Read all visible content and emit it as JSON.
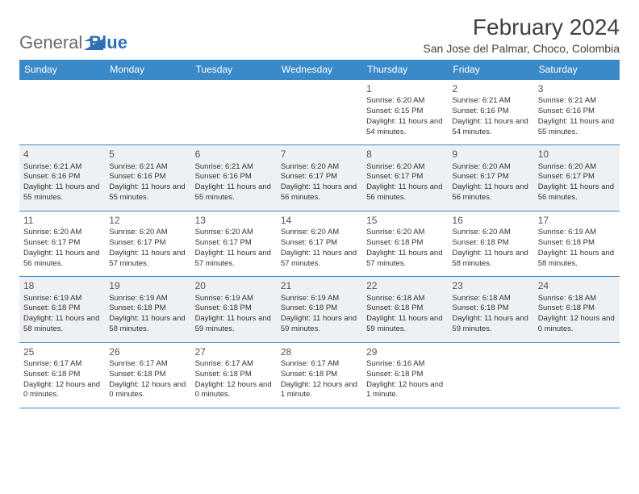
{
  "brand": {
    "word1": "General",
    "word2": "Blue"
  },
  "title": "February 2024",
  "subtitle": "San Jose del Palmar, Choco, Colombia",
  "colors": {
    "header_bg": "#3a8ac9",
    "header_text": "#ffffff",
    "rule": "#3a8ac9",
    "alt_row": "#eef1f3",
    "logo_grey": "#6a6a6a",
    "logo_blue": "#2f6fb3"
  },
  "day_headers": [
    "Sunday",
    "Monday",
    "Tuesday",
    "Wednesday",
    "Thursday",
    "Friday",
    "Saturday"
  ],
  "weeks": [
    [
      null,
      null,
      null,
      null,
      {
        "n": "1",
        "sr": "6:20 AM",
        "ss": "6:15 PM",
        "dl": "11 hours and 54 minutes."
      },
      {
        "n": "2",
        "sr": "6:21 AM",
        "ss": "6:16 PM",
        "dl": "11 hours and 54 minutes."
      },
      {
        "n": "3",
        "sr": "6:21 AM",
        "ss": "6:16 PM",
        "dl": "11 hours and 55 minutes."
      }
    ],
    [
      {
        "n": "4",
        "sr": "6:21 AM",
        "ss": "6:16 PM",
        "dl": "11 hours and 55 minutes."
      },
      {
        "n": "5",
        "sr": "6:21 AM",
        "ss": "6:16 PM",
        "dl": "11 hours and 55 minutes."
      },
      {
        "n": "6",
        "sr": "6:21 AM",
        "ss": "6:16 PM",
        "dl": "11 hours and 55 minutes."
      },
      {
        "n": "7",
        "sr": "6:20 AM",
        "ss": "6:17 PM",
        "dl": "11 hours and 56 minutes."
      },
      {
        "n": "8",
        "sr": "6:20 AM",
        "ss": "6:17 PM",
        "dl": "11 hours and 56 minutes."
      },
      {
        "n": "9",
        "sr": "6:20 AM",
        "ss": "6:17 PM",
        "dl": "11 hours and 56 minutes."
      },
      {
        "n": "10",
        "sr": "6:20 AM",
        "ss": "6:17 PM",
        "dl": "11 hours and 56 minutes."
      }
    ],
    [
      {
        "n": "11",
        "sr": "6:20 AM",
        "ss": "6:17 PM",
        "dl": "11 hours and 56 minutes."
      },
      {
        "n": "12",
        "sr": "6:20 AM",
        "ss": "6:17 PM",
        "dl": "11 hours and 57 minutes."
      },
      {
        "n": "13",
        "sr": "6:20 AM",
        "ss": "6:17 PM",
        "dl": "11 hours and 57 minutes."
      },
      {
        "n": "14",
        "sr": "6:20 AM",
        "ss": "6:17 PM",
        "dl": "11 hours and 57 minutes."
      },
      {
        "n": "15",
        "sr": "6:20 AM",
        "ss": "6:18 PM",
        "dl": "11 hours and 57 minutes."
      },
      {
        "n": "16",
        "sr": "6:20 AM",
        "ss": "6:18 PM",
        "dl": "11 hours and 58 minutes."
      },
      {
        "n": "17",
        "sr": "6:19 AM",
        "ss": "6:18 PM",
        "dl": "11 hours and 58 minutes."
      }
    ],
    [
      {
        "n": "18",
        "sr": "6:19 AM",
        "ss": "6:18 PM",
        "dl": "11 hours and 58 minutes."
      },
      {
        "n": "19",
        "sr": "6:19 AM",
        "ss": "6:18 PM",
        "dl": "11 hours and 58 minutes."
      },
      {
        "n": "20",
        "sr": "6:19 AM",
        "ss": "6:18 PM",
        "dl": "11 hours and 59 minutes."
      },
      {
        "n": "21",
        "sr": "6:19 AM",
        "ss": "6:18 PM",
        "dl": "11 hours and 59 minutes."
      },
      {
        "n": "22",
        "sr": "6:18 AM",
        "ss": "6:18 PM",
        "dl": "11 hours and 59 minutes."
      },
      {
        "n": "23",
        "sr": "6:18 AM",
        "ss": "6:18 PM",
        "dl": "11 hours and 59 minutes."
      },
      {
        "n": "24",
        "sr": "6:18 AM",
        "ss": "6:18 PM",
        "dl": "12 hours and 0 minutes."
      }
    ],
    [
      {
        "n": "25",
        "sr": "6:17 AM",
        "ss": "6:18 PM",
        "dl": "12 hours and 0 minutes."
      },
      {
        "n": "26",
        "sr": "6:17 AM",
        "ss": "6:18 PM",
        "dl": "12 hours and 0 minutes."
      },
      {
        "n": "27",
        "sr": "6:17 AM",
        "ss": "6:18 PM",
        "dl": "12 hours and 0 minutes."
      },
      {
        "n": "28",
        "sr": "6:17 AM",
        "ss": "6:18 PM",
        "dl": "12 hours and 1 minute."
      },
      {
        "n": "29",
        "sr": "6:16 AM",
        "ss": "6:18 PM",
        "dl": "12 hours and 1 minute."
      },
      null,
      null
    ]
  ],
  "labels": {
    "sunrise": "Sunrise: ",
    "sunset": "Sunset: ",
    "daylight": "Daylight: "
  }
}
